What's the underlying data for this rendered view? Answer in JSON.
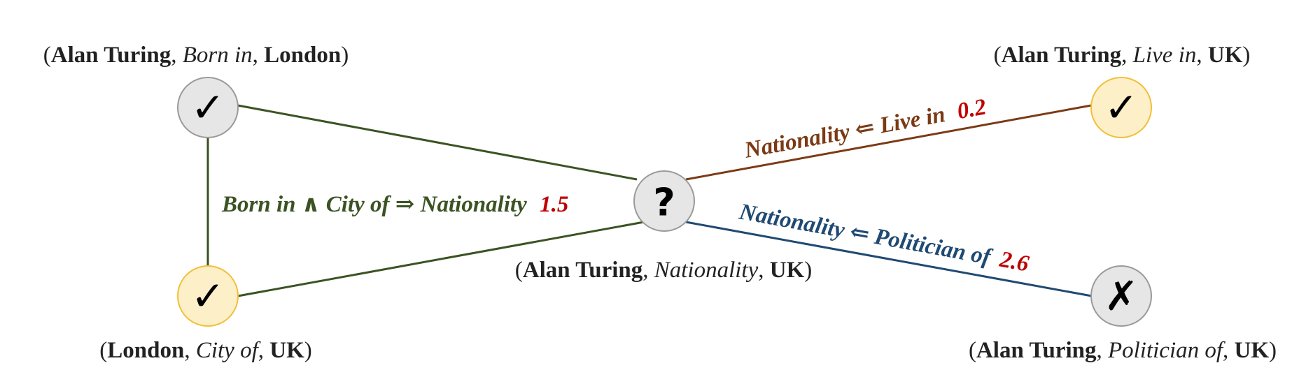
{
  "colors": {
    "rule_birth": "#3b5323",
    "rule_live": "#7b3a14",
    "rule_politician": "#1f4a73",
    "weight": "#c00000",
    "node_known_fill": "#e6e6e6",
    "node_known_stroke": "#9a9a9a",
    "node_inferred_fill": "#fdf0c8",
    "node_inferred_stroke": "#f2bf3a",
    "label_text": "#222222"
  },
  "nodes": {
    "born_in": {
      "glyph": "✓",
      "state": "known-true",
      "icon": "checkmark-icon",
      "triple": {
        "head": "Alan Turing",
        "relation": "Born in",
        "tail": "London"
      }
    },
    "city_of": {
      "glyph": "✓",
      "state": "inferred-true",
      "icon": "checkmark-icon",
      "triple": {
        "head": "London",
        "relation": "City of",
        "tail": "UK"
      }
    },
    "query": {
      "glyph": "?",
      "state": "query",
      "icon": "question-icon",
      "triple": {
        "head": "Alan Turing",
        "relation": "Nationality",
        "tail": "UK"
      }
    },
    "live_in": {
      "glyph": "✓",
      "state": "inferred-true",
      "icon": "checkmark-icon",
      "triple": {
        "head": "Alan Turing",
        "relation": "Live in",
        "tail": "UK"
      }
    },
    "politician_of": {
      "glyph": "✗",
      "state": "false",
      "icon": "cross-icon",
      "triple": {
        "head": "Alan Turing",
        "relation": "Politician of",
        "tail": "UK"
      }
    }
  },
  "rules": {
    "birth": {
      "text": "Born in ∧ City of ⇒ Nationality",
      "weight": "1.5"
    },
    "live": {
      "text": "Nationality ⇐ Live in",
      "weight": "0.2"
    },
    "politician": {
      "text": "Nationality ⇐ Politician of",
      "weight": "2.6"
    }
  }
}
